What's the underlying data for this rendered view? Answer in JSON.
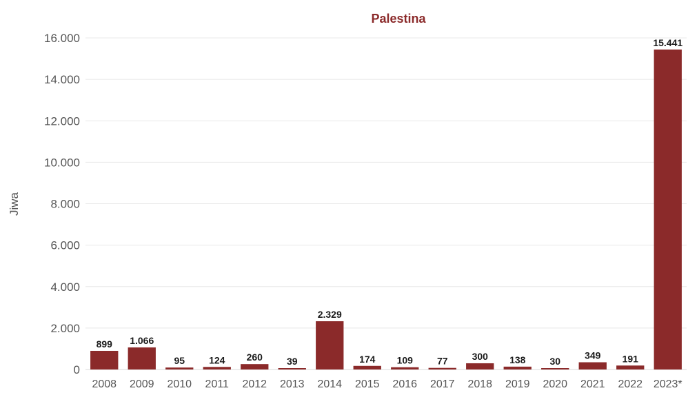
{
  "chart_data": {
    "type": "bar",
    "title": "Palestina",
    "xlabel": "",
    "ylabel": "Jiwa",
    "categories": [
      "2008",
      "2009",
      "2010",
      "2011",
      "2012",
      "2013",
      "2014",
      "2015",
      "2016",
      "2017",
      "2018",
      "2019",
      "2020",
      "2021",
      "2022",
      "2023*"
    ],
    "values": [
      899,
      1066,
      95,
      124,
      260,
      39,
      2329,
      174,
      109,
      77,
      300,
      138,
      30,
      349,
      191,
      15441
    ],
    "value_labels": [
      "899",
      "1.066",
      "95",
      "124",
      "260",
      "39",
      "2.329",
      "174",
      "109",
      "77",
      "300",
      "138",
      "30",
      "349",
      "191",
      "15.441"
    ],
    "ylim": [
      0,
      16000
    ],
    "yticks": [
      0,
      2000,
      4000,
      6000,
      8000,
      10000,
      12000,
      14000,
      16000
    ],
    "ytick_labels": [
      "0",
      "2.000",
      "4.000",
      "6.000",
      "8.000",
      "10.000",
      "12.000",
      "14.000",
      "16.000"
    ],
    "grid": true,
    "legend": "none",
    "colors": {
      "bar": "#8b2a2a",
      "title": "#8b2a2a"
    }
  }
}
